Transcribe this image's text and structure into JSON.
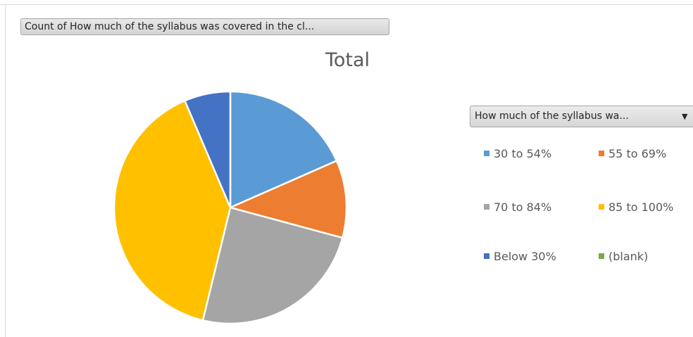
{
  "field_button_label": "Count of How much of the syllabus was covered in the cl...",
  "legend_field_label": "How much of the syllabus wa...",
  "icons": {
    "legend_dropdown": "dropdown-arrow-icon"
  },
  "chart_data": {
    "type": "pie",
    "title": "Total",
    "legend_placement": "right",
    "categories": [
      "30 to 54%",
      "55 to 69%",
      "70 to 84%",
      "85 to 100%",
      "Below 30%",
      "(blank)"
    ],
    "values": [
      18.4,
      10.8,
      24.6,
      39.8,
      6.4,
      0
    ],
    "colors": [
      "#5b9bd5",
      "#ed7d31",
      "#a5a5a5",
      "#ffc000",
      "#4472c4",
      "#70ad47"
    ],
    "start_angle_deg": 0,
    "direction": "clockwise"
  }
}
